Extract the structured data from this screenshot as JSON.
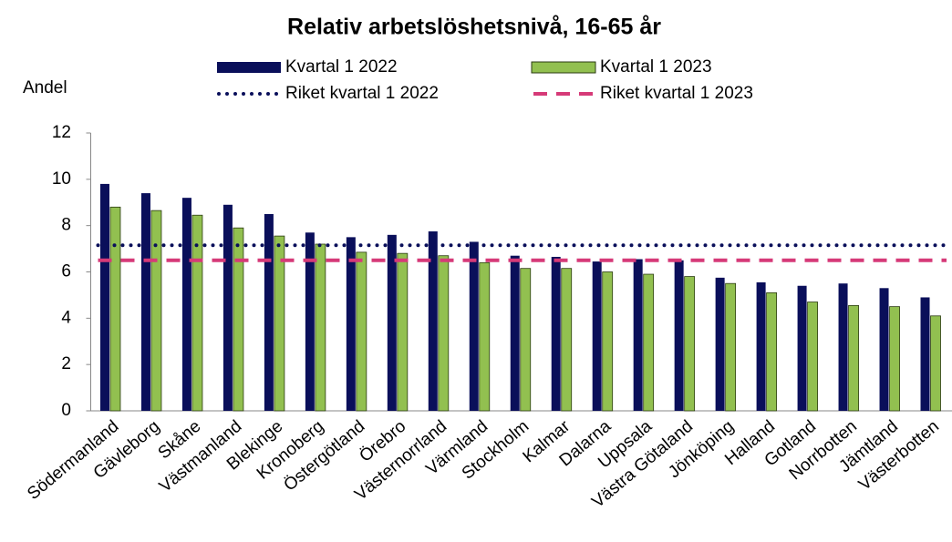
{
  "chart_data": {
    "type": "bar",
    "title": "Relativ arbetslöshetsnivå, 16-65 år",
    "y_label": "Andel",
    "categories": [
      "Södermanland",
      "Gävleborg",
      "Skåne",
      "Västmanland",
      "Blekinge",
      "Kronoberg",
      "Östergötland",
      "Örebro",
      "Västernorrland",
      "Värmland",
      "Stockholm",
      "Kalmar",
      "Dalarna",
      "Uppsala",
      "Västra Götaland",
      "Jönköping",
      "Halland",
      "Gotland",
      "Norrbotten",
      "Jämtland",
      "Västerbotten"
    ],
    "series": [
      {
        "name": "Kvartal 1 2022",
        "color": "#0a0f5a",
        "values": [
          9.8,
          9.4,
          9.2,
          8.9,
          8.5,
          7.7,
          7.5,
          7.6,
          7.75,
          7.3,
          6.7,
          6.65,
          6.45,
          6.55,
          6.5,
          5.75,
          5.55,
          5.4,
          5.5,
          5.3,
          4.9
        ]
      },
      {
        "name": "Kvartal 1 2023",
        "color": "#92c050",
        "values": [
          8.8,
          8.65,
          8.45,
          7.9,
          7.55,
          7.2,
          6.85,
          6.8,
          6.7,
          6.4,
          6.15,
          6.15,
          6.0,
          5.9,
          5.8,
          5.5,
          5.1,
          4.7,
          4.55,
          4.5,
          4.1
        ]
      }
    ],
    "reference_lines": [
      {
        "name": "Riket kvartal 1 2022",
        "value": 7.15,
        "color": "#0a0f5a",
        "style": "dotted"
      },
      {
        "name": "Riket kvartal 1 2023",
        "value": 6.5,
        "color": "#d63a78",
        "style": "dashed"
      }
    ],
    "ylim": [
      0,
      12
    ],
    "yticks": [
      0,
      2,
      4,
      6,
      8,
      10,
      12
    ],
    "grid": false
  }
}
